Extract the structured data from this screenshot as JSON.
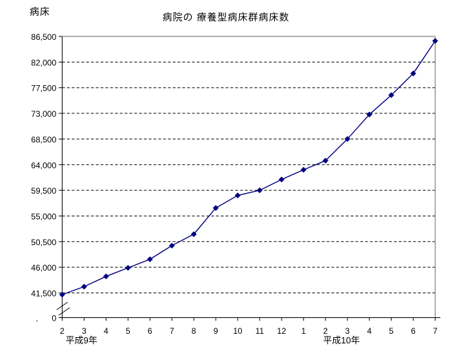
{
  "page": {
    "background_color": "#ffffff",
    "stray_mark": "."
  },
  "chart_data": {
    "type": "line",
    "title": "病院の 療養型病床群病床数",
    "ylabel": "病床",
    "xlabel": "",
    "x_categories": [
      "2",
      "3",
      "4",
      "5",
      "6",
      "7",
      "8",
      "9",
      "10",
      "11",
      "12",
      "1",
      "2",
      "3",
      "4",
      "5",
      "6",
      "7"
    ],
    "x_era_labels": [
      {
        "label": "平成9年",
        "center_index": 0.88
      },
      {
        "label": "平成10年",
        "center_index": 12.73
      }
    ],
    "values": [
      41200,
      42600,
      44400,
      45900,
      47400,
      49800,
      51800,
      56400,
      58600,
      59500,
      61400,
      63100,
      64700,
      68500,
      72800,
      76200,
      80000,
      85700
    ],
    "y_ticks": [
      {
        "value": 0,
        "label": "0"
      },
      {
        "value": 41500,
        "label": "41,500"
      },
      {
        "value": 46000,
        "label": "46,000"
      },
      {
        "value": 50500,
        "label": "50,500"
      },
      {
        "value": 55000,
        "label": "55,000"
      },
      {
        "value": 59500,
        "label": "59,500"
      },
      {
        "value": 64000,
        "label": "64,000"
      },
      {
        "value": 68500,
        "label": "68,500"
      },
      {
        "value": 73000,
        "label": "73,000"
      },
      {
        "value": 77500,
        "label": "77,500"
      },
      {
        "value": 82000,
        "label": "82,000"
      },
      {
        "value": 86500,
        "label": "86,500"
      }
    ],
    "ylim": [
      41500,
      86500
    ],
    "y_axis_break": true,
    "grid": "horizontal-dashed",
    "legend": "none",
    "marker": "diamond",
    "line_color": "#000080",
    "grid_color": "#000000",
    "border_color": "#848484",
    "axis_color": "#000000"
  }
}
